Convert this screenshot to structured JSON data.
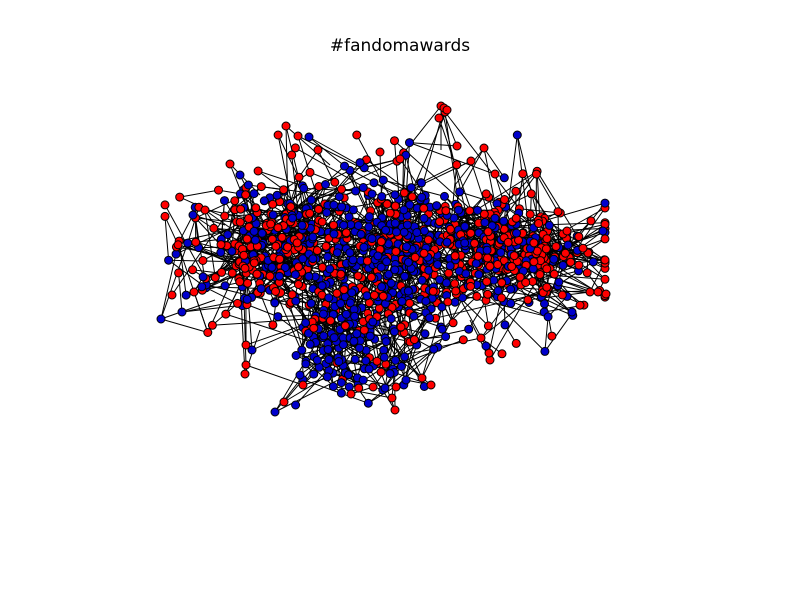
{
  "title": "#fandomawards",
  "colors": {
    "node_a": "#ff0000",
    "node_b": "#0000cc",
    "edge": "#000000",
    "node_outline": "#000000",
    "background": "#ffffff"
  }
}
